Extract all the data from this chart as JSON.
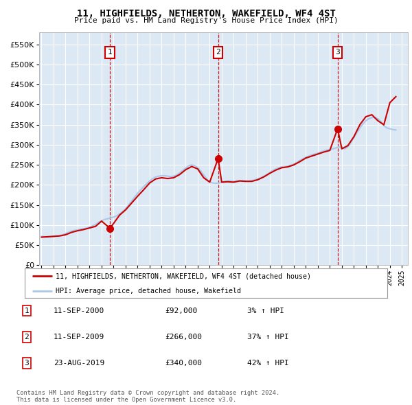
{
  "title": "11, HIGHFIELDS, NETHERTON, WAKEFIELD, WF4 4ST",
  "subtitle": "Price paid vs. HM Land Registry's House Price Index (HPI)",
  "ytick_values": [
    0,
    50000,
    100000,
    150000,
    200000,
    250000,
    300000,
    350000,
    400000,
    450000,
    500000,
    550000
  ],
  "ylim": [
    0,
    580000
  ],
  "xlim_start": 1994.8,
  "xlim_end": 2025.5,
  "transactions": [
    {
      "num": 1,
      "date": "11-SEP-2000",
      "year": 2000.7,
      "price": 92000,
      "pct": "3%",
      "hpi_label": "HPI"
    },
    {
      "num": 2,
      "date": "11-SEP-2009",
      "year": 2009.7,
      "price": 266000,
      "pct": "37%",
      "hpi_label": "HPI"
    },
    {
      "num": 3,
      "date": "23-AUG-2019",
      "year": 2019.65,
      "price": 340000,
      "pct": "42%",
      "hpi_label": "HPI"
    }
  ],
  "hpi_line_color": "#aac8e8",
  "price_line_color": "#cc0000",
  "transaction_marker_color": "#cc0000",
  "dashed_line_color": "#cc0000",
  "plot_bg": "#dce9f5",
  "grid_color": "#ffffff",
  "legend_label_price": "11, HIGHFIELDS, NETHERTON, WAKEFIELD, WF4 4ST (detached house)",
  "legend_label_hpi": "HPI: Average price, detached house, Wakefield",
  "footer": "Contains HM Land Registry data © Crown copyright and database right 2024.\nThis data is licensed under the Open Government Licence v3.0.",
  "hpi_data_x": [
    1995.0,
    1995.25,
    1995.5,
    1995.75,
    1996.0,
    1996.25,
    1996.5,
    1996.75,
    1997.0,
    1997.25,
    1997.5,
    1997.75,
    1998.0,
    1998.25,
    1998.5,
    1998.75,
    1999.0,
    1999.25,
    1999.5,
    1999.75,
    2000.0,
    2000.25,
    2000.5,
    2000.75,
    2001.0,
    2001.25,
    2001.5,
    2001.75,
    2002.0,
    2002.25,
    2002.5,
    2002.75,
    2003.0,
    2003.25,
    2003.5,
    2003.75,
    2004.0,
    2004.25,
    2004.5,
    2004.75,
    2005.0,
    2005.25,
    2005.5,
    2005.75,
    2006.0,
    2006.25,
    2006.5,
    2006.75,
    2007.0,
    2007.25,
    2007.5,
    2007.75,
    2008.0,
    2008.25,
    2008.5,
    2008.75,
    2009.0,
    2009.25,
    2009.5,
    2009.75,
    2010.0,
    2010.25,
    2010.5,
    2010.75,
    2011.0,
    2011.25,
    2011.5,
    2011.75,
    2012.0,
    2012.25,
    2012.5,
    2012.75,
    2013.0,
    2013.25,
    2013.5,
    2013.75,
    2014.0,
    2014.25,
    2014.5,
    2014.75,
    2015.0,
    2015.25,
    2015.5,
    2015.75,
    2016.0,
    2016.25,
    2016.5,
    2016.75,
    2017.0,
    2017.25,
    2017.5,
    2017.75,
    2018.0,
    2018.25,
    2018.5,
    2018.75,
    2019.0,
    2019.25,
    2019.5,
    2019.75,
    2020.0,
    2020.25,
    2020.5,
    2020.75,
    2021.0,
    2021.25,
    2021.5,
    2021.75,
    2022.0,
    2022.25,
    2022.5,
    2022.75,
    2023.0,
    2023.25,
    2023.5,
    2023.75,
    2024.0,
    2024.25,
    2024.5
  ],
  "hpi_data_y": [
    72000,
    71000,
    70000,
    71000,
    72000,
    73000,
    74000,
    76000,
    79000,
    82000,
    85000,
    87000,
    88000,
    90000,
    91000,
    93000,
    95000,
    98000,
    102000,
    107000,
    111000,
    114000,
    116000,
    118000,
    120000,
    123000,
    128000,
    134000,
    141000,
    150000,
    160000,
    170000,
    179000,
    188000,
    196000,
    203000,
    210000,
    216000,
    220000,
    222000,
    223000,
    223000,
    222000,
    221000,
    222000,
    225000,
    230000,
    236000,
    242000,
    248000,
    250000,
    248000,
    243000,
    235000,
    225000,
    215000,
    208000,
    205000,
    204000,
    205000,
    207000,
    209000,
    210000,
    210000,
    209000,
    210000,
    211000,
    211000,
    210000,
    210000,
    211000,
    213000,
    215000,
    218000,
    222000,
    226000,
    231000,
    236000,
    240000,
    243000,
    245000,
    246000,
    247000,
    249000,
    252000,
    256000,
    261000,
    265000,
    269000,
    272000,
    275000,
    277000,
    279000,
    282000,
    285000,
    287000,
    288000,
    290000,
    292000,
    295000,
    295000,
    290000,
    295000,
    305000,
    318000,
    330000,
    342000,
    352000,
    360000,
    365000,
    368000,
    368000,
    365000,
    358000,
    348000,
    342000,
    340000,
    338000,
    337000
  ],
  "price_data_x": [
    1995.0,
    1995.5,
    1996.0,
    1996.5,
    1997.0,
    1997.5,
    1998.0,
    1998.5,
    1999.0,
    1999.5,
    2000.0,
    2000.7,
    2001.5,
    2002.0,
    2002.5,
    2003.0,
    2003.5,
    2004.0,
    2004.5,
    2005.0,
    2005.5,
    2006.0,
    2006.5,
    2007.0,
    2007.5,
    2008.0,
    2008.5,
    2009.0,
    2009.7,
    2010.0,
    2010.5,
    2011.0,
    2011.5,
    2012.0,
    2012.5,
    2013.0,
    2013.5,
    2014.0,
    2014.5,
    2015.0,
    2015.5,
    2016.0,
    2016.5,
    2017.0,
    2017.5,
    2018.0,
    2018.5,
    2019.0,
    2019.65,
    2020.0,
    2020.5,
    2021.0,
    2021.5,
    2022.0,
    2022.5,
    2023.0,
    2023.5,
    2024.0,
    2024.5
  ],
  "price_data_y": [
    70000,
    71000,
    72000,
    73000,
    76000,
    82000,
    86000,
    89000,
    93000,
    97000,
    110000,
    92000,
    125000,
    138000,
    155000,
    172000,
    188000,
    205000,
    215000,
    218000,
    216000,
    218000,
    226000,
    238000,
    246000,
    240000,
    218000,
    207000,
    266000,
    207000,
    208000,
    207000,
    210000,
    209000,
    209000,
    213000,
    220000,
    229000,
    237000,
    243000,
    245000,
    250000,
    258000,
    267000,
    272000,
    277000,
    282000,
    286000,
    340000,
    290000,
    298000,
    320000,
    350000,
    370000,
    375000,
    360000,
    350000,
    405000,
    420000
  ]
}
